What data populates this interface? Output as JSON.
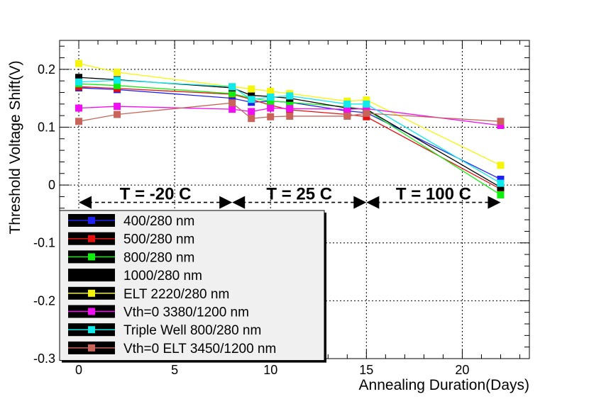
{
  "chart_data": {
    "type": "line",
    "xlabel": "Annealing Duration(Days)",
    "ylabel": "Threshold Voltage Shift(V)",
    "xlim": [
      -1,
      23.5
    ],
    "ylim": [
      -0.3,
      0.25
    ],
    "grid": true,
    "x_ticks": [
      0,
      5,
      10,
      15,
      20
    ],
    "y_ticks": [
      -0.3,
      -0.2,
      -0.1,
      0,
      0.1,
      0.2
    ],
    "x_tick_labels": [
      "0",
      "5",
      "10",
      "15",
      "20"
    ],
    "y_tick_labels": [
      "-0.3",
      "-0.2",
      "-0.1",
      "0",
      "0.1",
      "0.2"
    ],
    "legend_position": "bottom-left",
    "annealing_periods": [
      {
        "label": "T = -20 C",
        "x_start": 0,
        "x_end": 8,
        "y": -0.03
      },
      {
        "label": "T = 25 C",
        "x_start": 8,
        "x_end": 15,
        "y": -0.03
      },
      {
        "label": "T = 100 C",
        "x_start": 15,
        "x_end": 22,
        "y": -0.03
      }
    ],
    "series": [
      {
        "name": "400/280 nm",
        "color": "#1f1ff0",
        "x": [
          0,
          2,
          8,
          9,
          10,
          11,
          14,
          15,
          22
        ],
        "y": [
          0.168,
          0.165,
          0.15,
          0.143,
          0.145,
          0.143,
          0.128,
          0.125,
          0.01
        ]
      },
      {
        "name": "500/280 nm",
        "color": "#e51010",
        "x": [
          0,
          2,
          8,
          9,
          10,
          11,
          14,
          15,
          22
        ],
        "y": [
          0.17,
          0.167,
          0.157,
          0.148,
          0.138,
          0.13,
          0.122,
          0.118,
          -0.007
        ]
      },
      {
        "name": "800/280 nm",
        "color": "#10ee10",
        "x": [
          0,
          2,
          8,
          9,
          10,
          11,
          14,
          15,
          22
        ],
        "y": [
          0.175,
          0.172,
          0.158,
          0.15,
          0.145,
          0.143,
          0.135,
          0.13,
          -0.017
        ]
      },
      {
        "name": "1000/280 nm",
        "color": "#000000",
        "x": [
          0,
          2,
          8,
          9,
          10,
          11,
          14,
          15,
          22
        ],
        "y": [
          0.186,
          0.182,
          0.168,
          0.155,
          0.153,
          0.15,
          0.133,
          0.131,
          -0.004
        ]
      },
      {
        "name": "ELT 2220/280 nm",
        "color": "#f5f50a",
        "x": [
          0,
          2,
          8,
          9,
          10,
          11,
          14,
          15,
          22
        ],
        "y": [
          0.21,
          0.195,
          0.17,
          0.166,
          0.162,
          0.158,
          0.145,
          0.147,
          0.034
        ]
      },
      {
        "name": "Vth=0 3380/1200 nm",
        "color": "#f00ff0",
        "x": [
          0,
          2,
          8,
          9,
          10,
          11,
          14,
          15,
          22
        ],
        "y": [
          0.133,
          0.136,
          0.131,
          0.127,
          0.133,
          0.132,
          0.131,
          0.132,
          0.103
        ]
      },
      {
        "name": "Triple Well 800/280 nm",
        "color": "#10eaea",
        "x": [
          0,
          2,
          8,
          9,
          10,
          11,
          14,
          15,
          22
        ],
        "y": [
          0.178,
          0.181,
          0.17,
          0.148,
          0.152,
          0.154,
          0.14,
          0.14,
          0.003
        ]
      },
      {
        "name": "Vth=0 ELT 3450/1200 nm",
        "color": "#c8645a",
        "x": [
          0,
          2,
          8,
          9,
          10,
          11,
          14,
          15,
          22
        ],
        "y": [
          0.11,
          0.122,
          0.142,
          0.115,
          0.118,
          0.119,
          0.119,
          0.124,
          0.11
        ]
      }
    ]
  }
}
